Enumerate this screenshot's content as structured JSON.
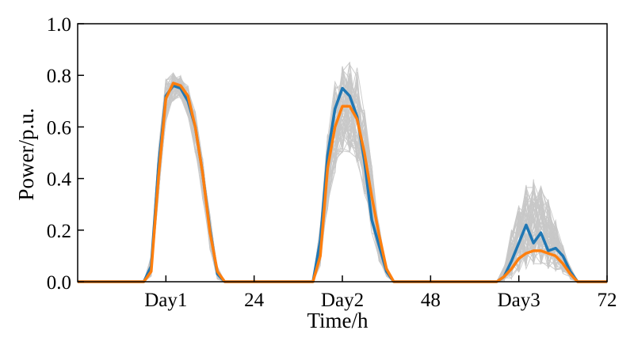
{
  "chart_data": {
    "type": "line",
    "title": "",
    "xlabel": "Time/h",
    "ylabel": "Power/p.u.",
    "xlim": [
      0,
      72
    ],
    "ylim": [
      0,
      1.0
    ],
    "grid": false,
    "legend": "none",
    "x_ticks": [
      {
        "value": 12,
        "label": "Day1"
      },
      {
        "value": 24,
        "label": "24"
      },
      {
        "value": 36,
        "label": "Day2"
      },
      {
        "value": 48,
        "label": "48"
      },
      {
        "value": 60,
        "label": "Day3"
      },
      {
        "value": 72,
        "label": "72"
      }
    ],
    "y_ticks": [
      {
        "value": 0.0,
        "label": "0.0"
      },
      {
        "value": 0.2,
        "label": "0.2"
      },
      {
        "value": 0.4,
        "label": "0.4"
      },
      {
        "value": 0.6,
        "label": "0.6"
      },
      {
        "value": 0.8,
        "label": "0.8"
      },
      {
        "value": 1.0,
        "label": "1.0"
      }
    ],
    "x": [
      0,
      1,
      2,
      3,
      4,
      5,
      6,
      7,
      8,
      9,
      10,
      11,
      12,
      13,
      14,
      15,
      16,
      17,
      18,
      19,
      20,
      21,
      22,
      23,
      24,
      25,
      26,
      27,
      28,
      29,
      30,
      31,
      32,
      33,
      34,
      35,
      36,
      37,
      38,
      39,
      40,
      41,
      42,
      43,
      44,
      45,
      46,
      47,
      48,
      49,
      50,
      51,
      52,
      53,
      54,
      55,
      56,
      57,
      58,
      59,
      60,
      61,
      62,
      63,
      64,
      65,
      66,
      67,
      68,
      69,
      70,
      71,
      72
    ],
    "series": [
      {
        "color": "#1f77b4",
        "values": [
          0,
          0,
          0,
          0,
          0,
          0,
          0,
          0,
          0,
          0,
          0.06,
          0.45,
          0.72,
          0.76,
          0.75,
          0.7,
          0.6,
          0.42,
          0.2,
          0.03,
          0,
          0,
          0,
          0,
          0,
          0,
          0,
          0,
          0,
          0,
          0,
          0,
          0,
          0.16,
          0.49,
          0.67,
          0.75,
          0.72,
          0.64,
          0.47,
          0.24,
          0.14,
          0.04,
          0,
          0,
          0,
          0,
          0,
          0,
          0,
          0,
          0,
          0,
          0,
          0,
          0,
          0,
          0,
          0.02,
          0.08,
          0.15,
          0.22,
          0.15,
          0.19,
          0.12,
          0.13,
          0.1,
          0.04,
          0,
          0,
          0,
          0,
          0
        ]
      },
      {
        "color": "#ff7f0e",
        "values": [
          0,
          0,
          0,
          0,
          0,
          0,
          0,
          0,
          0,
          0,
          0.04,
          0.41,
          0.71,
          0.77,
          0.76,
          0.72,
          0.6,
          0.42,
          0.19,
          0.04,
          0,
          0,
          0,
          0,
          0,
          0,
          0,
          0,
          0,
          0,
          0,
          0,
          0,
          0.1,
          0.44,
          0.6,
          0.68,
          0.68,
          0.63,
          0.5,
          0.33,
          0.18,
          0.05,
          0,
          0,
          0,
          0,
          0,
          0,
          0,
          0,
          0,
          0,
          0,
          0,
          0,
          0,
          0,
          0.02,
          0.05,
          0.09,
          0.11,
          0.12,
          0.12,
          0.11,
          0.1,
          0.07,
          0.03,
          0,
          0,
          0,
          0,
          0
        ]
      }
    ],
    "background_band": {
      "color": "#c8c8c8",
      "count": 60,
      "upper": [
        0,
        0,
        0,
        0,
        0,
        0,
        0,
        0,
        0,
        0,
        0.1,
        0.52,
        0.79,
        0.81,
        0.8,
        0.76,
        0.66,
        0.48,
        0.26,
        0.06,
        0,
        0,
        0,
        0,
        0,
        0,
        0,
        0,
        0,
        0,
        0,
        0,
        0,
        0.22,
        0.58,
        0.78,
        0.84,
        0.86,
        0.84,
        0.7,
        0.45,
        0.22,
        0.06,
        0,
        0,
        0,
        0,
        0,
        0,
        0,
        0,
        0,
        0,
        0,
        0,
        0,
        0,
        0,
        0.06,
        0.2,
        0.3,
        0.38,
        0.4,
        0.37,
        0.32,
        0.24,
        0.14,
        0.06,
        0,
        0,
        0,
        0,
        0
      ],
      "lower": [
        0,
        0,
        0,
        0,
        0,
        0,
        0,
        0,
        0,
        0,
        0.02,
        0.33,
        0.62,
        0.7,
        0.71,
        0.64,
        0.5,
        0.32,
        0.12,
        0.01,
        0,
        0,
        0,
        0,
        0,
        0,
        0,
        0,
        0,
        0,
        0,
        0,
        0,
        0.06,
        0.28,
        0.42,
        0.5,
        0.5,
        0.46,
        0.34,
        0.18,
        0.08,
        0.02,
        0,
        0,
        0,
        0,
        0,
        0,
        0,
        0,
        0,
        0,
        0,
        0,
        0,
        0,
        0,
        0,
        0.01,
        0.03,
        0.05,
        0.06,
        0.06,
        0.05,
        0.04,
        0.03,
        0.01,
        0,
        0,
        0,
        0,
        0
      ]
    }
  }
}
